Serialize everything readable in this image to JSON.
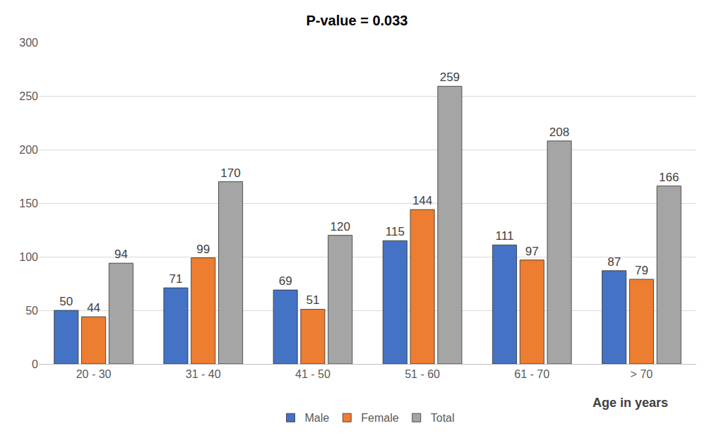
{
  "chart_data": {
    "type": "bar",
    "title": "P-value = 0.033",
    "xlabel": "Age in years",
    "categories": [
      "20 - 30",
      "31 - 40",
      "41 - 50",
      "51 - 60",
      "61 - 70",
      "> 70"
    ],
    "series": [
      {
        "name": "Male",
        "color": "#4472c4",
        "values": [
          50,
          71,
          69,
          115,
          111,
          87
        ]
      },
      {
        "name": "Female",
        "color": "#ed7d31",
        "values": [
          44,
          99,
          51,
          144,
          97,
          79
        ]
      },
      {
        "name": "Total",
        "color": "#a5a5a5",
        "values": [
          94,
          170,
          120,
          259,
          208,
          166
        ]
      }
    ],
    "ylim": [
      0,
      300
    ],
    "yticks": [
      0,
      50,
      100,
      150,
      200,
      250,
      300
    ],
    "grid": true,
    "legend": "bottom",
    "data_labels": true
  }
}
